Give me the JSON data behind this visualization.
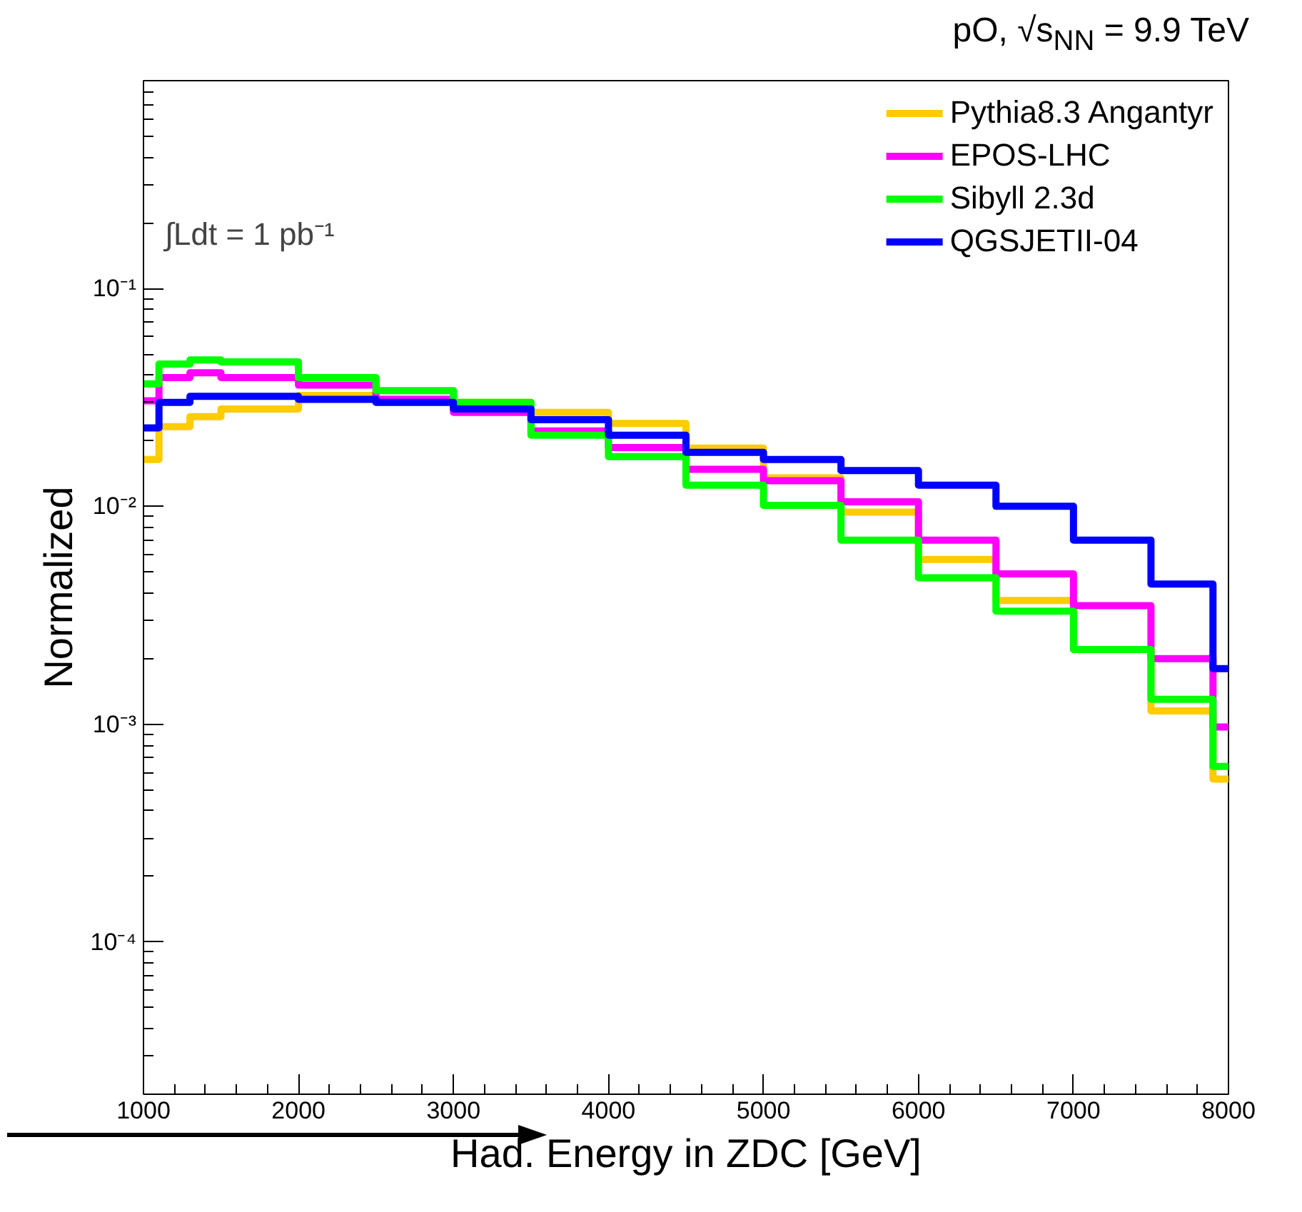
{
  "chart_data": {
    "type": "step",
    "title": "pO, √s$_{NN}$ = 9.9 TeV",
    "xlabel": "Had. Energy in ZDC [GeV]",
    "ylabel": "Normalized",
    "annotations": [
      "∫Ldt = 1 pb⁻¹"
    ],
    "x": [
      1000,
      1100,
      1300,
      1500,
      2000,
      2500,
      3000,
      3500,
      4000,
      4500,
      5000,
      5500,
      6000,
      6500,
      7000,
      7500,
      7900,
      8000
    ],
    "series": [
      {
        "name": "Pythia8.3 Angantyr",
        "color": "#ffcc00",
        "values": [
          0.0164,
          0.0232,
          0.0258,
          0.028,
          0.0323,
          0.031,
          0.03,
          0.027,
          0.024,
          0.0185,
          0.0135,
          0.0094,
          0.0057,
          0.0037,
          0.0022,
          0.00115,
          0.00056,
          0.00056
        ]
      },
      {
        "name": "EPOS-LHC",
        "color": "#ff00ff",
        "values": [
          0.0305,
          0.039,
          0.041,
          0.039,
          0.036,
          0.031,
          0.027,
          0.0222,
          0.0186,
          0.0148,
          0.0131,
          0.0105,
          0.007,
          0.0049,
          0.0035,
          0.002,
          0.00097,
          0.00097
        ]
      },
      {
        "name": "Sibyll 2.3d",
        "color": "#00ff00",
        "values": [
          0.0365,
          0.045,
          0.047,
          0.046,
          0.039,
          0.034,
          0.03,
          0.0212,
          0.0169,
          0.0125,
          0.0101,
          0.007,
          0.0047,
          0.0033,
          0.0022,
          0.0013,
          0.00064,
          0.00064
        ]
      },
      {
        "name": "QGSJETII-04",
        "color": "#0000ff",
        "values": [
          0.0229,
          0.03,
          0.032,
          0.032,
          0.031,
          0.03,
          0.028,
          0.025,
          0.0212,
          0.0177,
          0.0164,
          0.0146,
          0.0125,
          0.01,
          0.007,
          0.0044,
          0.0018,
          0.0018
        ]
      }
    ],
    "xlim": [
      1000,
      8000
    ],
    "ylim": [
      2e-05,
      0.9
    ],
    "xticks": [
      1000,
      2000,
      3000,
      4000,
      5000,
      6000,
      7000,
      8000
    ],
    "yticks": [
      {
        "value": 0.0001,
        "label": "10⁻⁴"
      },
      {
        "value": 0.001,
        "label": "10⁻³"
      },
      {
        "value": 0.01,
        "label": "10⁻²"
      },
      {
        "value": 0.1,
        "label": "10⁻¹"
      }
    ],
    "log": "y",
    "grid": false,
    "legend": "top right"
  }
}
